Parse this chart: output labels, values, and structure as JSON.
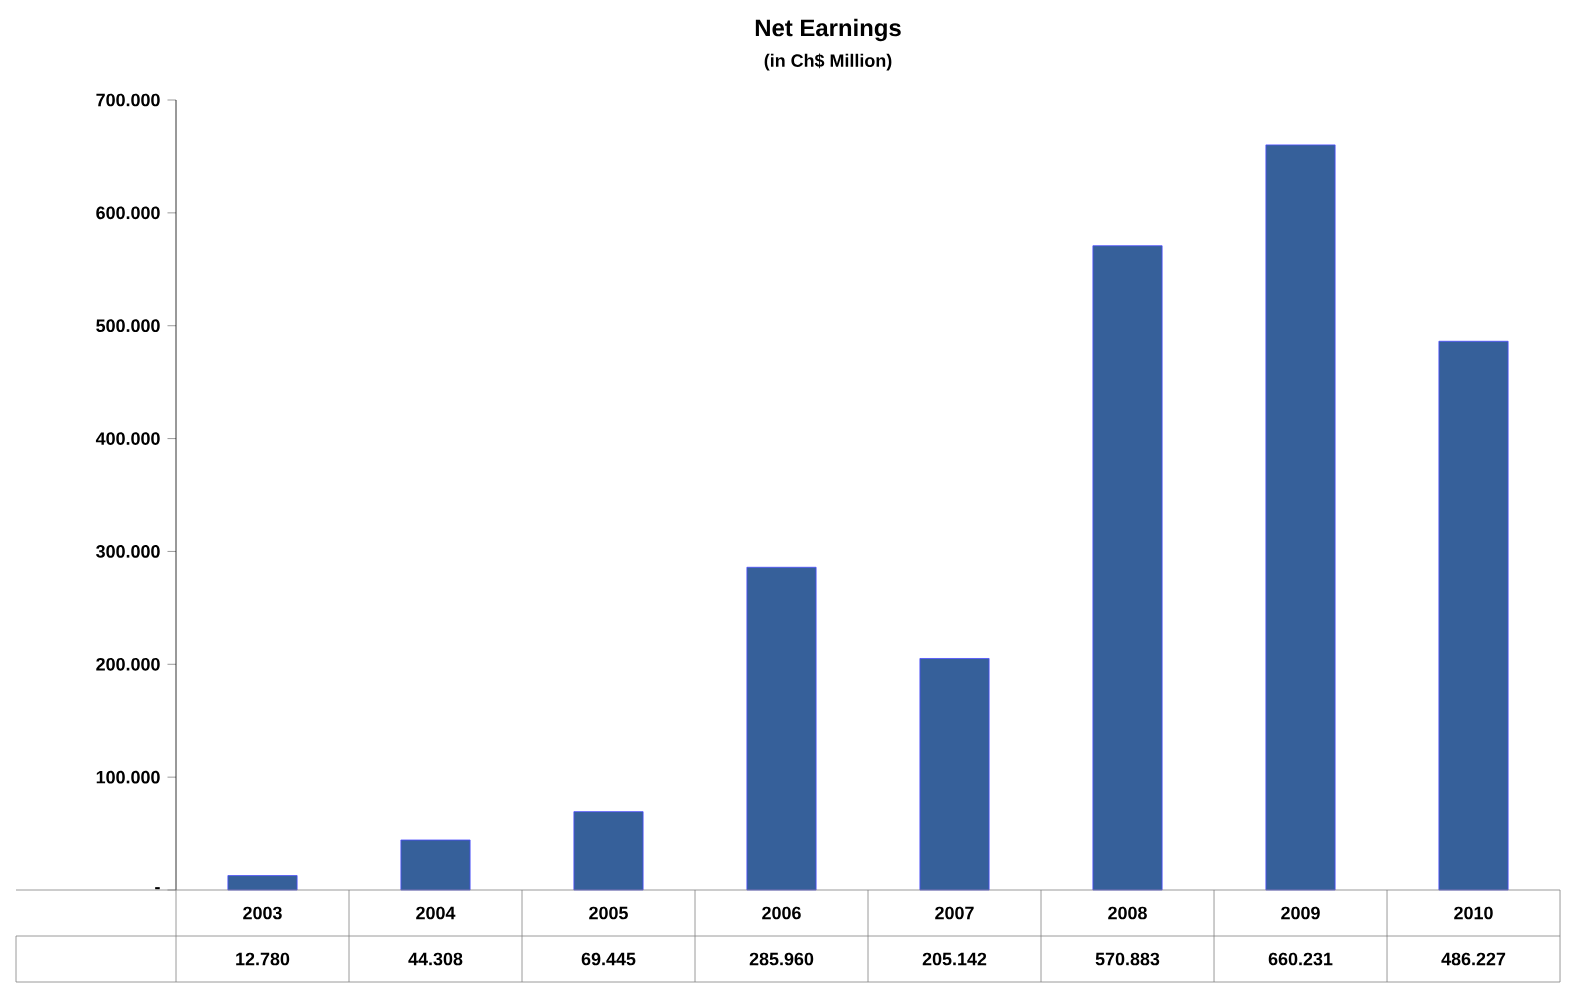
{
  "chart_data": {
    "type": "bar",
    "title": "Net Earnings",
    "subtitle": "(in Ch$ Million)",
    "categories": [
      "2003",
      "2004",
      "2005",
      "2006",
      "2007",
      "2008",
      "2009",
      "2010"
    ],
    "values": [
      12780,
      44308,
      69445,
      285960,
      205142,
      570883,
      660231,
      486227
    ],
    "value_labels": [
      "12.780",
      "44.308",
      "69.445",
      "285.960",
      "205.142",
      "570.883",
      "660.231",
      "486.227"
    ],
    "color": "#36609a",
    "ylim": [
      0,
      700000
    ],
    "yticks": [
      {
        "value": 0,
        "label": "-"
      },
      {
        "value": 100000,
        "label": "100.000"
      },
      {
        "value": 200000,
        "label": "200.000"
      },
      {
        "value": 300000,
        "label": "300.000"
      },
      {
        "value": 400000,
        "label": "400.000"
      },
      {
        "value": 500000,
        "label": "500.000"
      },
      {
        "value": 600000,
        "label": "600.000"
      },
      {
        "value": 700000,
        "label": "700.000"
      }
    ],
    "grid": false
  }
}
